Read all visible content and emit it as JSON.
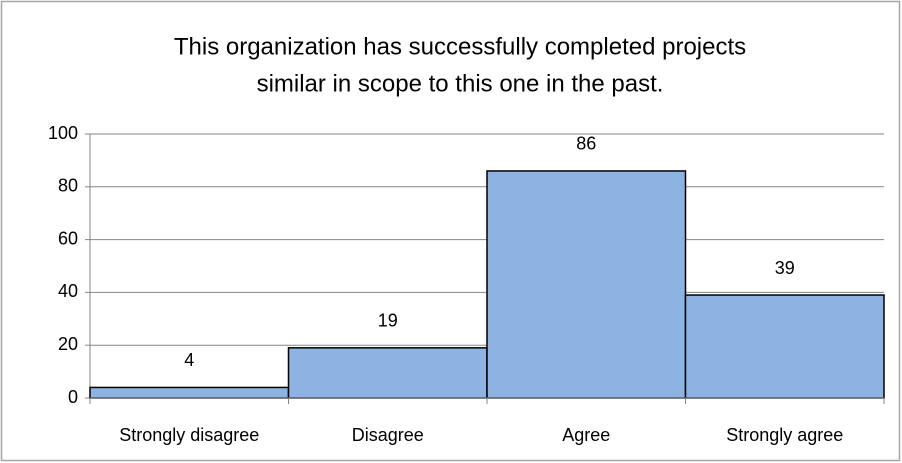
{
  "chart_data": {
    "type": "bar",
    "title": [
      "This organization has successfully completed projects",
      "similar in scope to this one in the past."
    ],
    "categories": [
      "Strongly disagree",
      "Disagree",
      "Agree",
      "Strongly agree"
    ],
    "values": [
      4,
      19,
      86,
      39
    ],
    "color": "#8db3e2",
    "ylim": [
      0,
      100
    ],
    "yticks": [
      0,
      20,
      40,
      60,
      80,
      100
    ],
    "grid": true
  }
}
